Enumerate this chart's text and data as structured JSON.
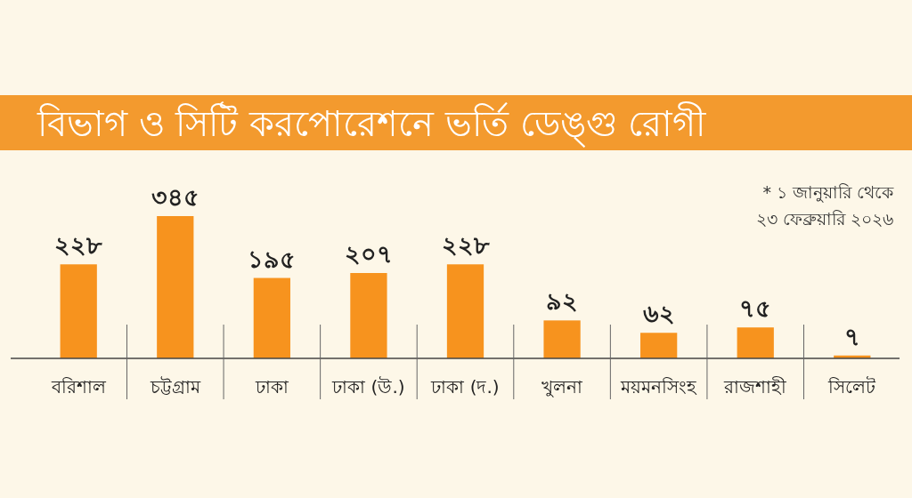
{
  "chart_data": {
    "type": "bar",
    "title": "বিভাগ ও সিটি করপোরেশনে ভর্তি ডেঙ্গু রোগী",
    "categories": [
      "বরিশাল",
      "চট্টগ্রাম",
      "ঢাকা",
      "ঢাকা (উ.)",
      "ঢাকা (দ.)",
      "খুলনা",
      "ময়মনসিংহ",
      "রাজশাহী",
      "সিলেট"
    ],
    "values": [
      228,
      345,
      195,
      207,
      228,
      92,
      62,
      75,
      7
    ],
    "value_labels": [
      "২২৮",
      "৩৪৫",
      "১৯৫",
      "২০৭",
      "২২৮",
      "৯২",
      "৬২",
      "৭৫",
      "৭"
    ],
    "color": "#f7931e",
    "annotations": [
      "* ১ জানুয়ারি থেকে\n২৩ ফেব্রুয়ারি ২০২৬"
    ]
  }
}
